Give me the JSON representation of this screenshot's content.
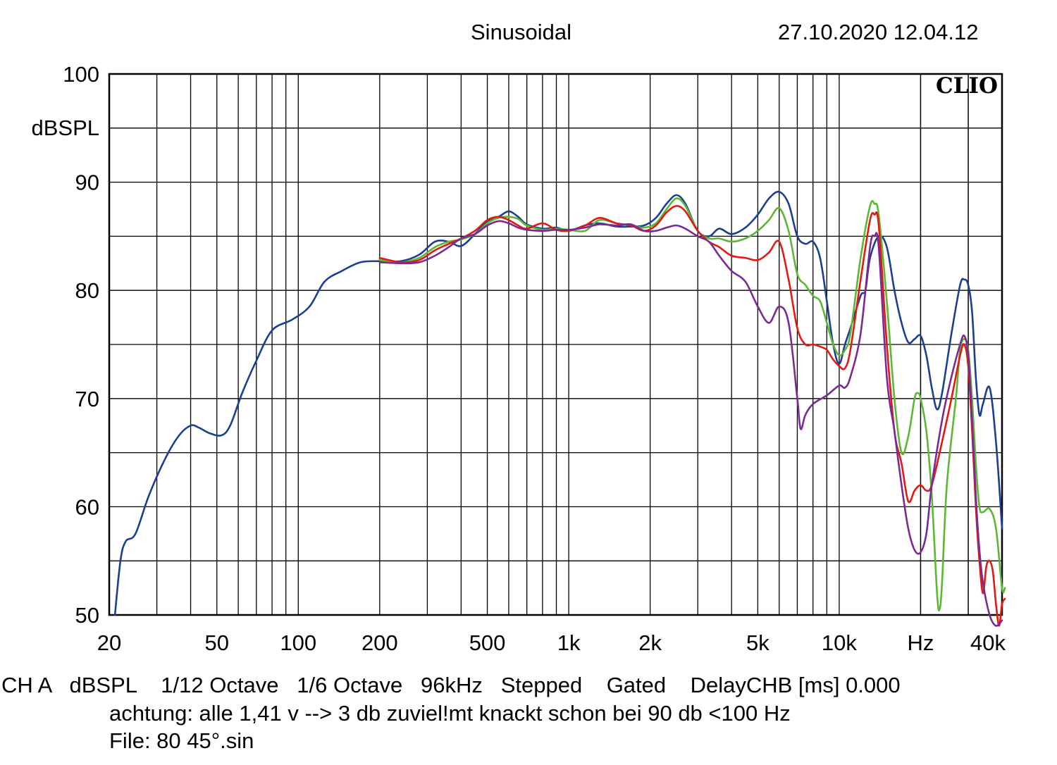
{
  "header": {
    "mode": "Sinusoidal",
    "timestamp": "27.10.2020 12.04.12"
  },
  "brand": "CLIO",
  "footer": {
    "line1": "CH A   dBSPL    1/12 Octave   1/6 Octave   96kHz   Stepped    Gated    DelayCHB [ms] 0.000",
    "line2": "achtung: alle 1,41 v --> 3 db zuviel!mt knackt schon bei 90 db <100 Hz",
    "line3": "File: 80 45°.sin"
  },
  "chart_data": {
    "type": "line",
    "x_scale": "log",
    "xlim": [
      20,
      40000
    ],
    "ylim": [
      50,
      100
    ],
    "ylabel": "dBSPL",
    "xlabel": "Hz",
    "grid": true,
    "y_ticks": [
      "50",
      "60",
      "70",
      "80",
      "90",
      "100"
    ],
    "x_ticks": [
      {
        "value": 20,
        "label": "20"
      },
      {
        "value": 50,
        "label": "50"
      },
      {
        "value": 100,
        "label": "100"
      },
      {
        "value": 200,
        "label": "200"
      },
      {
        "value": 500,
        "label": "500"
      },
      {
        "value": 1000,
        "label": "1k"
      },
      {
        "value": 2000,
        "label": "2k"
      },
      {
        "value": 5000,
        "label": "5k"
      },
      {
        "value": 10000,
        "label": "10k"
      },
      {
        "value": 20000,
        "label": "Hz"
      },
      {
        "value": 40000,
        "label": "40k"
      }
    ],
    "series": [
      {
        "color": "#1c3f94",
        "points": [
          [
            21,
            50
          ],
          [
            22,
            55
          ],
          [
            23,
            56.8
          ],
          [
            25,
            57.5
          ],
          [
            28,
            61
          ],
          [
            32,
            64.3
          ],
          [
            36,
            66.5
          ],
          [
            40,
            67.5
          ],
          [
            43,
            67.3
          ],
          [
            47,
            66.8
          ],
          [
            52,
            66.6
          ],
          [
            56,
            67.5
          ],
          [
            62,
            70.5
          ],
          [
            70,
            73.5
          ],
          [
            80,
            76.3
          ],
          [
            95,
            77.3
          ],
          [
            110,
            78.5
          ],
          [
            125,
            80.8
          ],
          [
            145,
            81.8
          ],
          [
            170,
            82.6
          ],
          [
            200,
            82.7
          ],
          [
            240,
            82.7
          ],
          [
            280,
            83.3
          ],
          [
            320,
            84.5
          ],
          [
            360,
            84.5
          ],
          [
            400,
            84.1
          ],
          [
            450,
            85.2
          ],
          [
            500,
            86.4
          ],
          [
            550,
            86.8
          ],
          [
            600,
            87.3
          ],
          [
            650,
            86.8
          ],
          [
            700,
            86.1
          ],
          [
            800,
            85.7
          ],
          [
            900,
            85.8
          ],
          [
            1000,
            85.5
          ],
          [
            1150,
            86
          ],
          [
            1300,
            86.2
          ],
          [
            1500,
            85.9
          ],
          [
            1700,
            85.9
          ],
          [
            1900,
            86
          ],
          [
            2100,
            86.7
          ],
          [
            2300,
            88
          ],
          [
            2500,
            88.8
          ],
          [
            2700,
            88
          ],
          [
            3000,
            85.5
          ],
          [
            3300,
            85
          ],
          [
            3600,
            85.7
          ],
          [
            4000,
            85.2
          ],
          [
            4500,
            85.8
          ],
          [
            5000,
            87
          ],
          [
            5500,
            88.5
          ],
          [
            6000,
            89.1
          ],
          [
            6500,
            88
          ],
          [
            7000,
            85
          ],
          [
            7500,
            84.3
          ],
          [
            8000,
            84.5
          ],
          [
            8500,
            83
          ],
          [
            9000,
            79
          ],
          [
            9500,
            75
          ],
          [
            10000,
            73.2
          ],
          [
            10500,
            75
          ],
          [
            11000,
            76.5
          ],
          [
            12000,
            79.5
          ],
          [
            12500,
            80
          ],
          [
            13000,
            83
          ],
          [
            14000,
            85
          ],
          [
            15000,
            84
          ],
          [
            16000,
            80
          ],
          [
            17000,
            77
          ],
          [
            18000,
            75.2
          ],
          [
            19000,
            75.5
          ],
          [
            20000,
            75.8
          ],
          [
            21000,
            74
          ],
          [
            22000,
            71
          ],
          [
            23000,
            69
          ],
          [
            24000,
            70.5
          ],
          [
            26000,
            76
          ],
          [
            28000,
            80.5
          ],
          [
            29000,
            81
          ],
          [
            30000,
            80.5
          ],
          [
            31000,
            78
          ],
          [
            32000,
            72
          ],
          [
            33000,
            68.5
          ],
          [
            34000,
            69.5
          ],
          [
            36000,
            71
          ],
          [
            38000,
            66
          ],
          [
            40000,
            58
          ]
        ]
      },
      {
        "color": "#5cb832",
        "points": [
          [
            200,
            82.8
          ],
          [
            240,
            82.6
          ],
          [
            280,
            83
          ],
          [
            320,
            84
          ],
          [
            360,
            84.5
          ],
          [
            400,
            84.7
          ],
          [
            450,
            85.2
          ],
          [
            500,
            86.2
          ],
          [
            550,
            86.7
          ],
          [
            600,
            86.8
          ],
          [
            650,
            86.6
          ],
          [
            700,
            86
          ],
          [
            800,
            85.6
          ],
          [
            900,
            85.7
          ],
          [
            1000,
            85.6
          ],
          [
            1150,
            85.5
          ],
          [
            1300,
            86.5
          ],
          [
            1500,
            86.2
          ],
          [
            1700,
            86
          ],
          [
            1900,
            85.8
          ],
          [
            2100,
            86.2
          ],
          [
            2300,
            87.5
          ],
          [
            2500,
            88.5
          ],
          [
            2700,
            87.8
          ],
          [
            3000,
            85.5
          ],
          [
            3300,
            84.8
          ],
          [
            3600,
            84.8
          ],
          [
            4000,
            84.5
          ],
          [
            4500,
            84.8
          ],
          [
            5000,
            85.5
          ],
          [
            5500,
            86.5
          ],
          [
            6000,
            87.6
          ],
          [
            6500,
            85.5
          ],
          [
            7000,
            81.5
          ],
          [
            7500,
            80.5
          ],
          [
            8000,
            79.5
          ],
          [
            8500,
            79
          ],
          [
            9000,
            77
          ],
          [
            9500,
            75
          ],
          [
            10000,
            74
          ],
          [
            10500,
            74.5
          ],
          [
            11000,
            76
          ],
          [
            12000,
            83
          ],
          [
            13000,
            87.8
          ],
          [
            13500,
            88
          ],
          [
            14000,
            87
          ],
          [
            15000,
            79
          ],
          [
            16000,
            70
          ],
          [
            17000,
            65
          ],
          [
            18000,
            66.5
          ],
          [
            19000,
            70
          ],
          [
            19500,
            70.5
          ],
          [
            20000,
            70
          ],
          [
            21000,
            67
          ],
          [
            22000,
            61
          ],
          [
            23000,
            52
          ],
          [
            23500,
            50.5
          ],
          [
            24000,
            53
          ],
          [
            25000,
            62
          ],
          [
            27000,
            70
          ],
          [
            28000,
            74.5
          ],
          [
            29000,
            75.5
          ],
          [
            30000,
            74.5
          ],
          [
            31000,
            70
          ],
          [
            32000,
            64
          ],
          [
            33000,
            60
          ],
          [
            34000,
            59.5
          ],
          [
            36000,
            59.8
          ],
          [
            38000,
            58
          ],
          [
            40000,
            52.5
          ],
          [
            41000,
            52.5
          ]
        ]
      },
      {
        "color": "#e11a12",
        "points": [
          [
            200,
            83
          ],
          [
            240,
            82.6
          ],
          [
            280,
            82.8
          ],
          [
            320,
            83.7
          ],
          [
            360,
            84.3
          ],
          [
            400,
            84.8
          ],
          [
            450,
            85.5
          ],
          [
            500,
            86.5
          ],
          [
            550,
            86.8
          ],
          [
            600,
            86.5
          ],
          [
            650,
            86
          ],
          [
            700,
            85.7
          ],
          [
            800,
            86.2
          ],
          [
            900,
            85.6
          ],
          [
            1000,
            85.5
          ],
          [
            1150,
            86
          ],
          [
            1300,
            86.7
          ],
          [
            1500,
            86.2
          ],
          [
            1700,
            86
          ],
          [
            1900,
            85.5
          ],
          [
            2100,
            86
          ],
          [
            2300,
            87.2
          ],
          [
            2500,
            87.8
          ],
          [
            2700,
            87.3
          ],
          [
            3000,
            85.5
          ],
          [
            3300,
            84.5
          ],
          [
            3600,
            84
          ],
          [
            4000,
            83.2
          ],
          [
            4500,
            83
          ],
          [
            5000,
            82.8
          ],
          [
            5500,
            83.5
          ],
          [
            6000,
            84.5
          ],
          [
            6500,
            81
          ],
          [
            7000,
            76.5
          ],
          [
            7500,
            75
          ],
          [
            8000,
            75
          ],
          [
            8500,
            74.8
          ],
          [
            9000,
            74.5
          ],
          [
            9500,
            73.6
          ],
          [
            10000,
            73
          ],
          [
            10500,
            72.8
          ],
          [
            11000,
            74.5
          ],
          [
            12000,
            81
          ],
          [
            13000,
            86.5
          ],
          [
            13500,
            87
          ],
          [
            14000,
            86
          ],
          [
            15000,
            75
          ],
          [
            16000,
            67
          ],
          [
            17000,
            64
          ],
          [
            18000,
            60.5
          ],
          [
            19000,
            61.5
          ],
          [
            20000,
            62
          ],
          [
            21000,
            61.5
          ],
          [
            22000,
            62
          ],
          [
            24000,
            66
          ],
          [
            26000,
            70
          ],
          [
            28000,
            74
          ],
          [
            29000,
            75
          ],
          [
            30000,
            73
          ],
          [
            31000,
            67
          ],
          [
            32000,
            60
          ],
          [
            33000,
            55
          ],
          [
            34000,
            52
          ],
          [
            35000,
            54.5
          ],
          [
            36000,
            55
          ],
          [
            37000,
            54
          ],
          [
            38000,
            51
          ],
          [
            39000,
            49
          ],
          [
            40000,
            51
          ],
          [
            41000,
            51.5
          ]
        ]
      },
      {
        "color": "#7b2a94",
        "points": [
          [
            200,
            82.6
          ],
          [
            240,
            82.5
          ],
          [
            280,
            82.6
          ],
          [
            320,
            83.2
          ],
          [
            360,
            84
          ],
          [
            400,
            84.8
          ],
          [
            450,
            85.2
          ],
          [
            500,
            86
          ],
          [
            550,
            86.4
          ],
          [
            600,
            86.2
          ],
          [
            650,
            85.8
          ],
          [
            700,
            85.6
          ],
          [
            800,
            85.5
          ],
          [
            900,
            85.6
          ],
          [
            1000,
            85.6
          ],
          [
            1150,
            85.8
          ],
          [
            1300,
            86.1
          ],
          [
            1500,
            86
          ],
          [
            1700,
            86.1
          ],
          [
            1900,
            85.5
          ],
          [
            2100,
            85.5
          ],
          [
            2300,
            85.8
          ],
          [
            2500,
            86
          ],
          [
            2700,
            85.7
          ],
          [
            3000,
            85
          ],
          [
            3300,
            84.5
          ],
          [
            3600,
            83.2
          ],
          [
            4000,
            81.8
          ],
          [
            4500,
            80.8
          ],
          [
            5000,
            78.5
          ],
          [
            5500,
            77
          ],
          [
            6000,
            78.5
          ],
          [
            6500,
            77
          ],
          [
            7000,
            70
          ],
          [
            7200,
            67.2
          ],
          [
            7500,
            68.5
          ],
          [
            8000,
            69.5
          ],
          [
            9000,
            70.3
          ],
          [
            10000,
            71.2
          ],
          [
            10500,
            71
          ],
          [
            11000,
            72
          ],
          [
            12000,
            76
          ],
          [
            13000,
            84
          ],
          [
            13500,
            85
          ],
          [
            14000,
            84
          ],
          [
            15000,
            72
          ],
          [
            16000,
            67
          ],
          [
            17000,
            62
          ],
          [
            18000,
            58
          ],
          [
            19000,
            56
          ],
          [
            20000,
            55.8
          ],
          [
            21000,
            57.5
          ],
          [
            22000,
            62
          ],
          [
            24000,
            68
          ],
          [
            26000,
            72
          ],
          [
            28000,
            75
          ],
          [
            29000,
            75.8
          ],
          [
            30000,
            74
          ],
          [
            31000,
            68
          ],
          [
            32000,
            61
          ],
          [
            33000,
            56
          ],
          [
            34000,
            53
          ],
          [
            36000,
            50
          ],
          [
            38000,
            49
          ],
          [
            40000,
            49.5
          ]
        ]
      }
    ]
  }
}
